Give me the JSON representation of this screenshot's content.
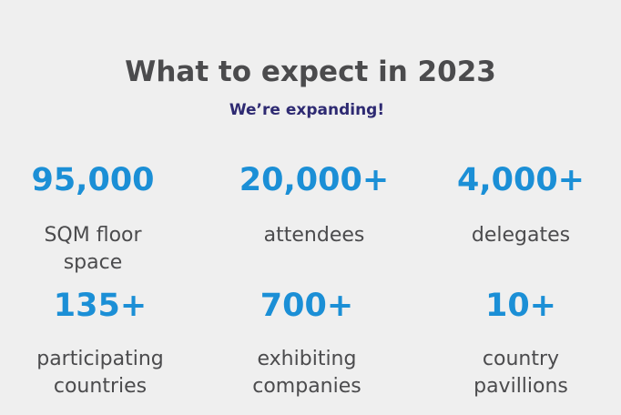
{
  "header": {
    "title": "What to expect in 2023",
    "subtitle": "We’re expanding!"
  },
  "stats": [
    {
      "value": "95,000",
      "label": "SQM floor space"
    },
    {
      "value": "20,000+",
      "label": "attendees"
    },
    {
      "value": "4,000+",
      "label": "delegates"
    },
    {
      "value": "135+",
      "label": "participating countries"
    },
    {
      "value": "700+",
      "label": "exhibiting companies"
    },
    {
      "value": "10+",
      "label": "country pavillions"
    }
  ],
  "colors": {
    "background": "#efefef",
    "title": "#4b4b4d",
    "subtitle": "#2e2a72",
    "stat_value": "#1b8fd6",
    "stat_label": "#4b4b4d"
  }
}
